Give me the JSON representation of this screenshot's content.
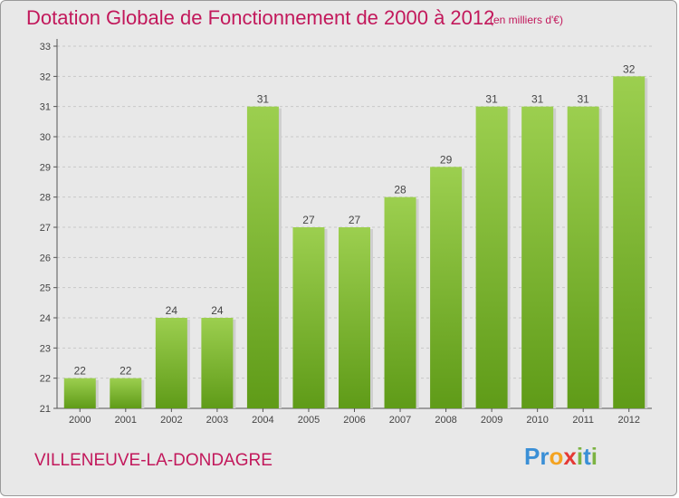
{
  "chart_data": {
    "type": "bar",
    "title": "Dotation Globale de Fonctionnement de 2000 à 2012",
    "subtitle": "(en milliers d'€)",
    "categories": [
      "2000",
      "2001",
      "2002",
      "2003",
      "2004",
      "2005",
      "2006",
      "2007",
      "2008",
      "2009",
      "2010",
      "2011",
      "2012"
    ],
    "values": [
      22,
      22,
      24,
      24,
      31,
      27,
      27,
      28,
      29,
      31,
      31,
      31,
      32
    ],
    "ylim": [
      21,
      33
    ],
    "yticks": [
      "21",
      "22",
      "23",
      "24",
      "25",
      "26",
      "27",
      "28",
      "29",
      "30",
      "31",
      "32",
      "33"
    ],
    "grid": true,
    "xlabel": "",
    "ylabel": "",
    "bar_color_top": "#9ccf4f",
    "bar_color_bottom": "#5f9b18"
  },
  "footer": {
    "commune": "VILLENEUVE-LA-DONDAGRE",
    "logo_letters": [
      {
        "ch": "P",
        "color": "#3a8fd6"
      },
      {
        "ch": "r",
        "color": "#3a8fd6"
      },
      {
        "ch": "o",
        "color": "#f4a321"
      },
      {
        "ch": "x",
        "color": "#e53935"
      },
      {
        "ch": "i",
        "color": "#7cb342"
      },
      {
        "ch": "t",
        "color": "#3a8fd6"
      },
      {
        "ch": "i",
        "color": "#7cb342"
      }
    ]
  }
}
